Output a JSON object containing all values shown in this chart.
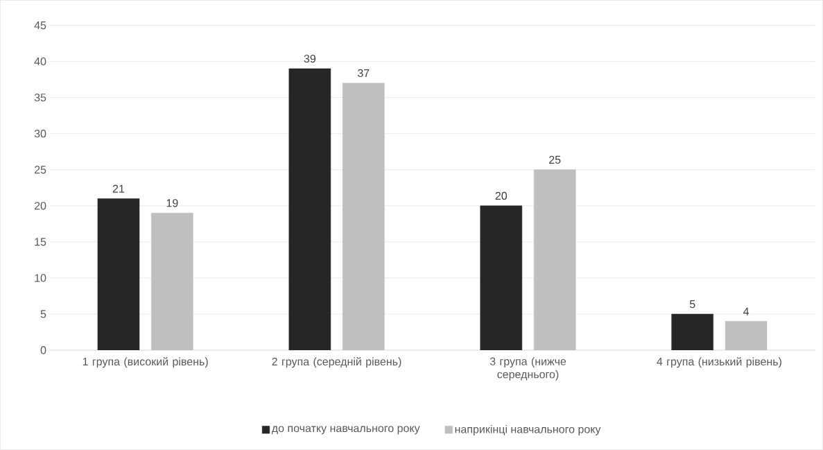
{
  "chart_data": {
    "type": "bar",
    "categories": [
      "1 група (високий рівень)",
      "2 група (середній рівень)",
      "3 група (нижче середнього)",
      "4 група (низький рівень)"
    ],
    "series": [
      {
        "name": "до початку навчального року",
        "color": "#262626",
        "values": [
          21,
          39,
          20,
          5
        ]
      },
      {
        "name": "наприкінці навчального року",
        "color": "#bfbfbf",
        "values": [
          19,
          37,
          25,
          4
        ]
      }
    ],
    "ylim": [
      0,
      45
    ],
    "yticks": [
      0,
      5,
      10,
      15,
      20,
      25,
      30,
      35,
      40,
      45
    ],
    "grid": "y",
    "legend": "bottom",
    "data_labels": true
  }
}
